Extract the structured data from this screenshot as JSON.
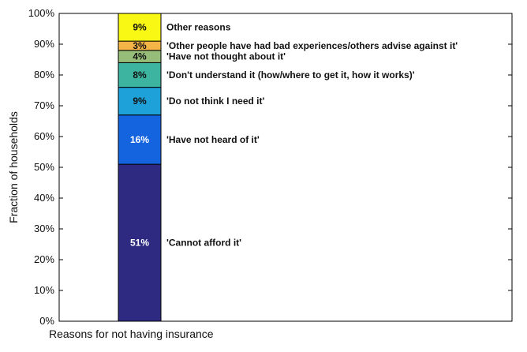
{
  "chart_data": {
    "type": "bar",
    "stacked": true,
    "orientation": "vertical",
    "ylabel": "Fraction of households",
    "xlabel": "Reasons for not having insurance",
    "ylim": [
      0,
      100
    ],
    "yticks": [
      "0%",
      "10%",
      "20%",
      "30%",
      "40%",
      "50%",
      "60%",
      "70%",
      "80%",
      "90%",
      "100%"
    ],
    "grid": false,
    "segments": [
      {
        "value": 51,
        "label": "51%",
        "name": "'Cannot afford it'",
        "color": "#2e2a82",
        "text_color": "#ffffff"
      },
      {
        "value": 16,
        "label": "16%",
        "name": "'Have not heard of it'",
        "color": "#1464e0",
        "text_color": "#ffffff"
      },
      {
        "value": 9,
        "label": "9%",
        "name": "'Do not think I need it'",
        "color": "#1ea0d8",
        "text_color": "#111111"
      },
      {
        "value": 8,
        "label": "8%",
        "name": "'Don't understand it (how/where to get it, how it works)'",
        "color": "#3cb4a0",
        "text_color": "#111111"
      },
      {
        "value": 4,
        "label": "4%",
        "name": "'Have not thought about it'",
        "color": "#96be78",
        "text_color": "#111111"
      },
      {
        "value": 3,
        "label": "3%",
        "name": "'Other people have had bad experiences/others advise against it'",
        "color": "#f5b446",
        "text_color": "#111111"
      },
      {
        "value": 9,
        "label": "9%",
        "name": "Other reasons",
        "color": "#f8f814",
        "text_color": "#111111"
      }
    ]
  }
}
